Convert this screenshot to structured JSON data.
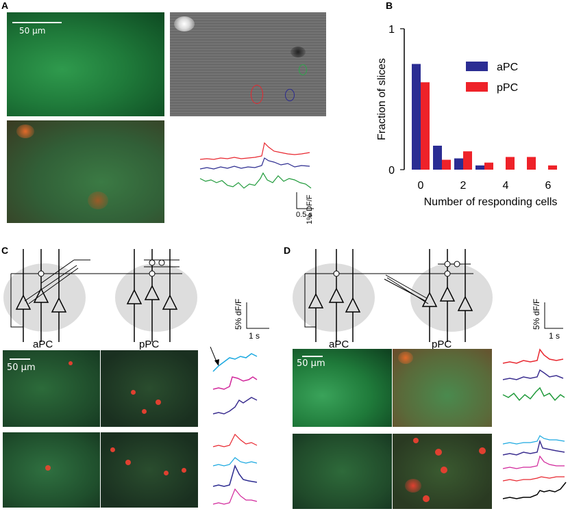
{
  "panels": {
    "a": "A",
    "b": "B",
    "c": "C",
    "d": "D"
  },
  "panel_a": {
    "scale_bar_label": "50 µm",
    "dff_label": "1% DF/F",
    "time_label": "0.5 s",
    "trace_colors": [
      "#e8262e",
      "#2b2a8f",
      "#1f9a3a"
    ]
  },
  "panel_c": {
    "region_left": "aPC",
    "region_right": "pPC",
    "dff_label": "5% dF/F",
    "time_label": "1 s",
    "scale_bar_label": "50 µm",
    "top_trace_colors": [
      "#19a8e0",
      "#d1259a",
      "#3a2d8f"
    ],
    "bottom_trace_colors": [
      "#e8262e",
      "#19a8e0",
      "#2b2a8f",
      "#d1259a"
    ]
  },
  "panel_d": {
    "region_left": "aPC",
    "region_right": "pPC",
    "dff_label": "5% dF/F",
    "time_label": "1 s",
    "scale_bar_label": "50 µm",
    "top_trace_colors": [
      "#e8262e",
      "#3a2d8f",
      "#1f9a3a"
    ],
    "bottom_trace_colors": [
      "#19a8e0",
      "#3a2d8f",
      "#d1259a",
      "#e8262e",
      "#000000"
    ]
  },
  "chart_data": {
    "type": "bar",
    "ylabel": "Fraction of slices",
    "xlabel": "Number of responding cells",
    "x_ticks": [
      "0",
      "2",
      "4",
      "6"
    ],
    "y_ticks": [
      "0",
      "1"
    ],
    "ylim": [
      0,
      1
    ],
    "categories": [
      0,
      1,
      2,
      3,
      4,
      5,
      6
    ],
    "legend_position": "right",
    "series": [
      {
        "name": "aPC",
        "color": "#2b2d93",
        "values": [
          0.75,
          0.17,
          0.08,
          0.03,
          0,
          0,
          0
        ]
      },
      {
        "name": "pPC",
        "color": "#ee2229",
        "values": [
          0.62,
          0.07,
          0.13,
          0.05,
          0.09,
          0.09,
          0.03
        ]
      }
    ]
  }
}
